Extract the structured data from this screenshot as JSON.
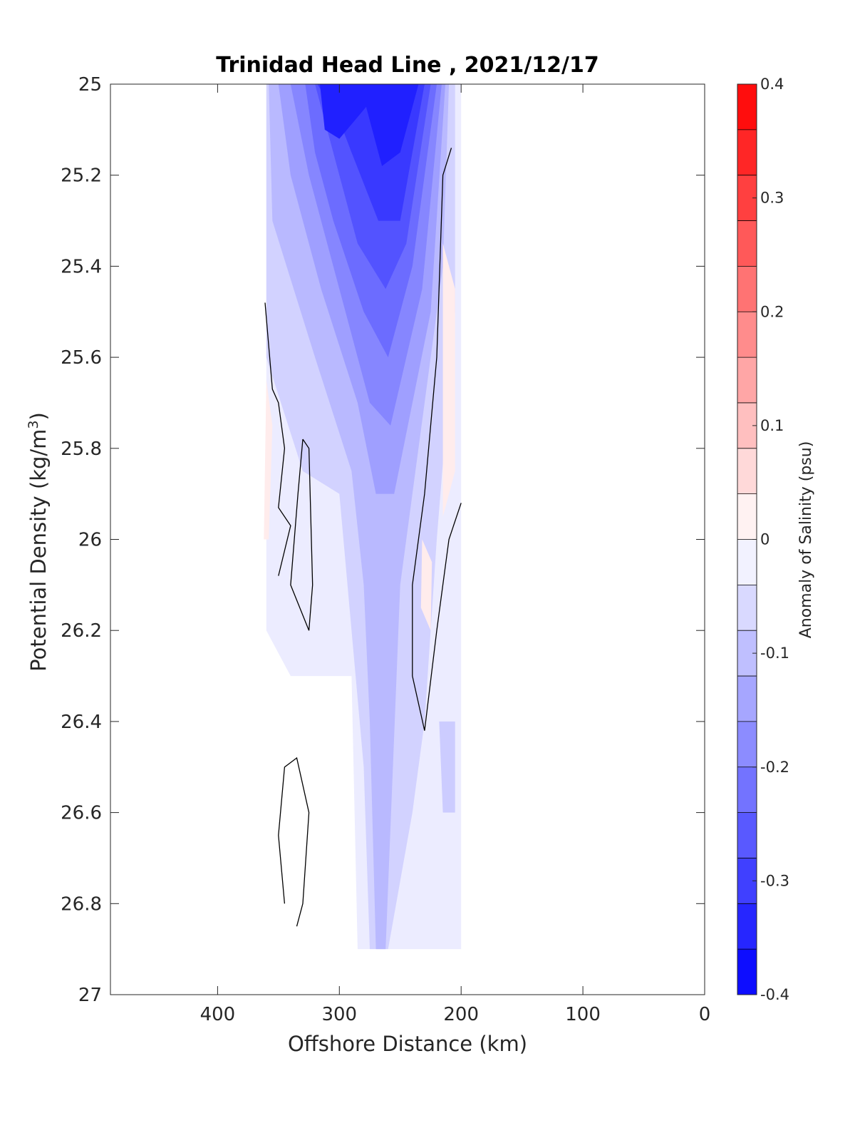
{
  "chart_data": {
    "type": "contour",
    "title": "Trinidad Head Line , 2021/12/17",
    "xlabel": "Offshore Distance (km)",
    "ylabel_main": "Potential Density (kg/m",
    "ylabel_sup": "3",
    "ylabel_close": ")",
    "colorbar_label": "Anomaly of Salinity (psu)",
    "x_reversed": true,
    "xlim": [
      0,
      488
    ],
    "ylim": [
      25,
      27
    ],
    "y_reversed": true,
    "x_ticks": [
      400,
      300,
      200,
      100,
      0
    ],
    "x_tick_labels": [
      "400",
      "300",
      "200",
      "100",
      "0"
    ],
    "y_ticks": [
      25,
      25.2,
      25.4,
      25.6,
      25.8,
      26,
      26.2,
      26.4,
      26.6,
      26.8,
      27
    ],
    "y_tick_labels": [
      "25",
      "25.2",
      "25.4",
      "25.6",
      "25.8",
      "26",
      "26.2",
      "26.4",
      "26.6",
      "26.8",
      "27"
    ],
    "clim": [
      -0.4,
      0.4
    ],
    "colorbar_ticks": [
      0.4,
      0.3,
      0.2,
      0.1,
      0,
      -0.1,
      -0.2,
      -0.3,
      -0.4
    ],
    "colorbar_tick_labels": [
      "0.4",
      "0.3",
      "0.2",
      "0.1",
      "0",
      "-0.1",
      "-0.2",
      "-0.3",
      "-0.4"
    ],
    "colorbar_levels": 20,
    "colors": {
      "max": "#ff0000",
      "mid": "#ffffff",
      "min": "#0000ff",
      "contour": "#000000"
    },
    "fields": [
      {
        "anomaly": -0.03,
        "points": [
          [
            360,
            25
          ],
          [
            200,
            25
          ],
          [
            200,
            26.9
          ],
          [
            285,
            26.9
          ],
          [
            290,
            26.3
          ],
          [
            340,
            26.3
          ],
          [
            360,
            26.2
          ]
        ]
      },
      {
        "anomaly": -0.07,
        "points": [
          [
            360,
            25
          ],
          [
            205,
            25
          ],
          [
            205,
            25.5
          ],
          [
            220,
            26.0
          ],
          [
            230,
            26.4
          ],
          [
            240,
            26.6
          ],
          [
            260,
            26.9
          ],
          [
            275,
            26.9
          ],
          [
            280,
            26.5
          ],
          [
            290,
            26.2
          ],
          [
            300,
            25.9
          ],
          [
            330,
            25.85
          ],
          [
            360,
            25.6
          ]
        ]
      },
      {
        "anomaly": -0.11,
        "points": [
          [
            358,
            25
          ],
          [
            210,
            25
          ],
          [
            215,
            25.4
          ],
          [
            240,
            25.9
          ],
          [
            250,
            26.1
          ],
          [
            262,
            26.9
          ],
          [
            270,
            26.9
          ],
          [
            275,
            26.4
          ],
          [
            280,
            26.1
          ],
          [
            290,
            25.85
          ],
          [
            320,
            25.6
          ],
          [
            355,
            25.3
          ]
        ]
      },
      {
        "anomaly": -0.15,
        "points": [
          [
            350,
            25
          ],
          [
            213,
            25
          ],
          [
            225,
            25.5
          ],
          [
            255,
            25.9
          ],
          [
            270,
            25.9
          ],
          [
            285,
            25.7
          ],
          [
            315,
            25.45
          ],
          [
            340,
            25.2
          ]
        ]
      },
      {
        "anomaly": -0.19,
        "points": [
          [
            340,
            25
          ],
          [
            216,
            25
          ],
          [
            232,
            25.45
          ],
          [
            258,
            25.75
          ],
          [
            275,
            25.7
          ],
          [
            300,
            25.45
          ],
          [
            325,
            25.2
          ]
        ]
      },
      {
        "anomaly": -0.23,
        "points": [
          [
            328,
            25
          ],
          [
            220,
            25
          ],
          [
            240,
            25.4
          ],
          [
            260,
            25.6
          ],
          [
            280,
            25.5
          ],
          [
            305,
            25.3
          ],
          [
            320,
            25.15
          ]
        ]
      },
      {
        "anomaly": -0.27,
        "points": [
          [
            320,
            25
          ],
          [
            225,
            25
          ],
          [
            245,
            25.35
          ],
          [
            262,
            25.45
          ],
          [
            285,
            25.35
          ],
          [
            300,
            25.2
          ]
        ]
      },
      {
        "anomaly": -0.31,
        "points": [
          [
            318,
            25
          ],
          [
            230,
            25
          ],
          [
            250,
            25.3
          ],
          [
            268,
            25.3
          ],
          [
            290,
            25.15
          ],
          [
            300,
            25.08
          ]
        ]
      },
      {
        "anomaly": -0.35,
        "points": [
          [
            316,
            25
          ],
          [
            235,
            25
          ],
          [
            250,
            25.15
          ],
          [
            265,
            25.18
          ],
          [
            278,
            25.05
          ],
          [
            300,
            25.12
          ],
          [
            312,
            25.1
          ]
        ]
      },
      {
        "anomaly": -0.08,
        "points": [
          [
            218,
            26.4
          ],
          [
            205,
            26.4
          ],
          [
            205,
            26.6
          ],
          [
            215,
            26.6
          ]
        ]
      },
      {
        "anomaly": 0.03,
        "points": [
          [
            215,
            25.35
          ],
          [
            205,
            25.45
          ],
          [
            205,
            25.85
          ],
          [
            215,
            25.95
          ]
        ]
      },
      {
        "anomaly": 0.03,
        "points": [
          [
            360,
            25.65
          ],
          [
            355,
            25.75
          ],
          [
            358,
            26.0
          ],
          [
            362,
            26.0
          ]
        ]
      },
      {
        "anomaly": 0.03,
        "points": [
          [
            232,
            26.0
          ],
          [
            224,
            26.05
          ],
          [
            225,
            26.2
          ],
          [
            233,
            26.15
          ]
        ]
      }
    ],
    "contours": [
      [
        [
          361,
          25.48
        ],
        [
          355,
          25.67
        ],
        [
          350,
          25.7
        ],
        [
          345,
          25.8
        ],
        [
          350,
          25.93
        ],
        [
          340,
          25.97
        ],
        [
          350,
          26.08
        ]
      ],
      [
        [
          330,
          25.78
        ],
        [
          325,
          25.8
        ],
        [
          322,
          26.1
        ],
        [
          325,
          26.2
        ],
        [
          340,
          26.1
        ],
        [
          334,
          25.9
        ],
        [
          330,
          25.78
        ]
      ],
      [
        [
          208,
          25.14
        ],
        [
          215,
          25.2
        ],
        [
          220,
          25.6
        ],
        [
          230,
          25.9
        ],
        [
          240,
          26.1
        ],
        [
          240,
          26.3
        ],
        [
          230,
          26.42
        ],
        [
          220,
          26.2
        ],
        [
          210,
          26.0
        ],
        [
          200,
          25.92
        ]
      ],
      [
        [
          345,
          26.8
        ],
        [
          350,
          26.65
        ],
        [
          345,
          26.5
        ],
        [
          335,
          26.48
        ],
        [
          325,
          26.6
        ],
        [
          330,
          26.8
        ],
        [
          335,
          26.85
        ]
      ]
    ]
  }
}
